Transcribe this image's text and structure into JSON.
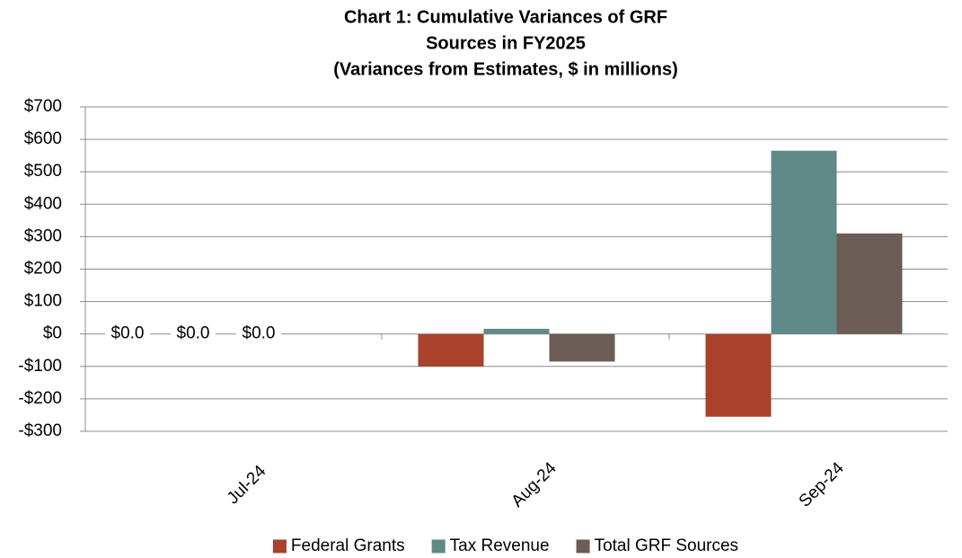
{
  "chart_data": {
    "type": "bar",
    "title": [
      "Chart 1: Cumulative Variances of GRF",
      "Sources in FY2025",
      "(Variances from Estimates, $ in millions)"
    ],
    "categories": [
      "Jul-24",
      "Aug-24",
      "Sep-24"
    ],
    "series": [
      {
        "name": "Federal Grants",
        "color": "#a9412b",
        "values": [
          0,
          -100,
          -255
        ],
        "value_labels": [
          "$0.0",
          null,
          null
        ]
      },
      {
        "name": "Tax Revenue",
        "color": "#5f8a88",
        "values": [
          0,
          16,
          565
        ],
        "value_labels": [
          "$0.0",
          null,
          null
        ]
      },
      {
        "name": "Total GRF Sources",
        "color": "#6b5d55",
        "values": [
          0,
          -85,
          310
        ],
        "value_labels": [
          "$0.0",
          null,
          null
        ]
      }
    ],
    "ylim": [
      -300,
      700
    ],
    "yticks": [
      {
        "value": -300,
        "label": "-$300"
      },
      {
        "value": -200,
        "label": "-$200"
      },
      {
        "value": -100,
        "label": "-$100"
      },
      {
        "value": 0,
        "label": "$0"
      },
      {
        "value": 100,
        "label": "$100"
      },
      {
        "value": 200,
        "label": "$200"
      },
      {
        "value": 300,
        "label": "$300"
      },
      {
        "value": 400,
        "label": "$400"
      },
      {
        "value": 500,
        "label": "$500"
      },
      {
        "value": 600,
        "label": "$600"
      },
      {
        "value": 700,
        "label": "$700"
      }
    ],
    "grid": true,
    "legend": "bottom"
  }
}
